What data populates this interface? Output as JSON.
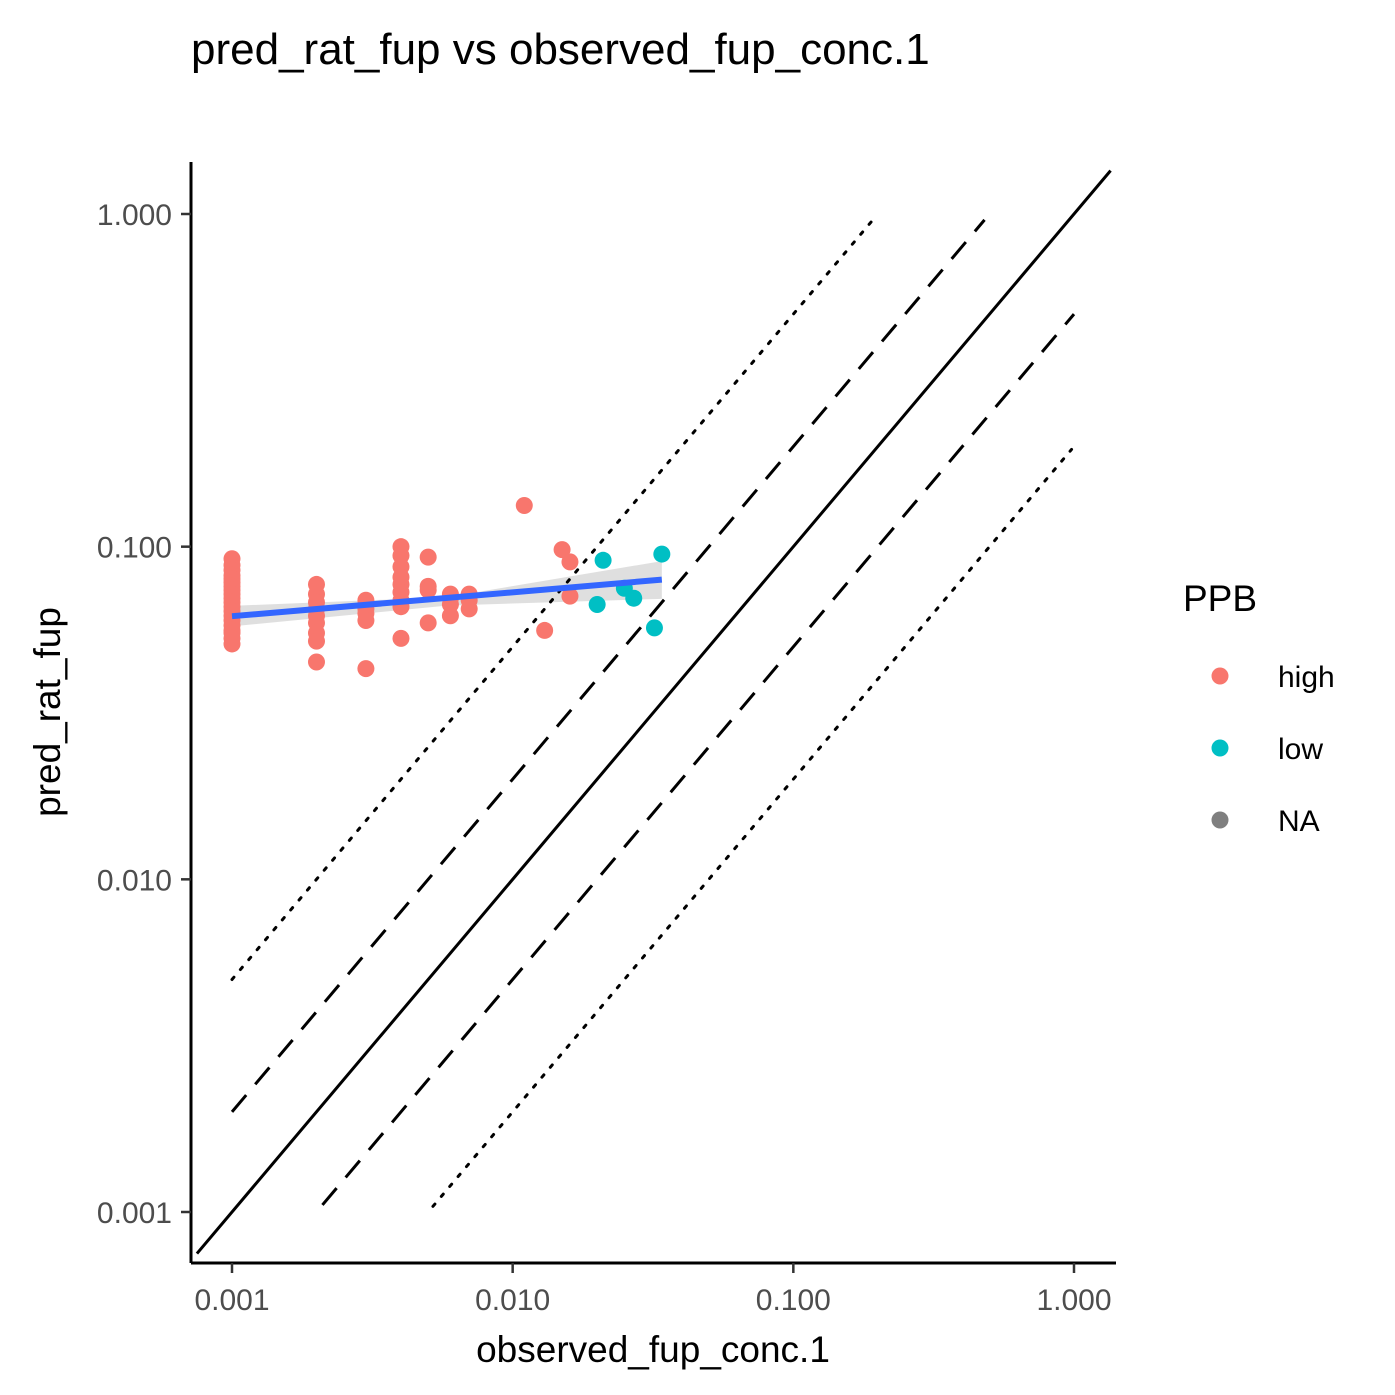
{
  "chart_data": {
    "type": "scatter",
    "title": "pred_rat_fup vs observed_fup_conc.1",
    "xlabel": "observed_fup_conc.1",
    "ylabel": "pred_rat_fup",
    "x_scale": "log10",
    "y_scale": "log10",
    "xlim": [
      0.00075,
      1.35
    ],
    "ylim": [
      0.00075,
      1.35
    ],
    "x_ticks": [
      0.001,
      0.01,
      0.1,
      1
    ],
    "y_ticks": [
      0.001,
      0.01,
      0.1,
      1
    ],
    "x_tick_labels": [
      "0.001",
      "0.010",
      "0.100",
      "1.000"
    ],
    "y_tick_labels": [
      "0.001",
      "0.010",
      "0.100",
      "1.000"
    ],
    "grid": false,
    "legend": {
      "title": "PPB",
      "position": "right",
      "entries": [
        {
          "label": "high",
          "color": "#F8766D"
        },
        {
          "label": "low",
          "color": "#00BFC4"
        },
        {
          "label": "NA",
          "color": "#7F7F7F"
        }
      ]
    },
    "series": [
      {
        "name": "high",
        "color": "#F8766D",
        "points": [
          [
            0.001,
            0.092
          ],
          [
            0.001,
            0.088
          ],
          [
            0.001,
            0.085
          ],
          [
            0.001,
            0.082
          ],
          [
            0.001,
            0.08
          ],
          [
            0.001,
            0.078
          ],
          [
            0.001,
            0.076
          ],
          [
            0.001,
            0.074
          ],
          [
            0.001,
            0.072
          ],
          [
            0.001,
            0.07
          ],
          [
            0.001,
            0.068
          ],
          [
            0.001,
            0.066
          ],
          [
            0.001,
            0.064
          ],
          [
            0.001,
            0.062
          ],
          [
            0.001,
            0.06
          ],
          [
            0.001,
            0.058
          ],
          [
            0.001,
            0.056
          ],
          [
            0.001,
            0.055
          ],
          [
            0.001,
            0.053
          ],
          [
            0.001,
            0.051
          ],
          [
            0.002,
            0.077
          ],
          [
            0.002,
            0.072
          ],
          [
            0.002,
            0.068
          ],
          [
            0.002,
            0.065
          ],
          [
            0.002,
            0.062
          ],
          [
            0.002,
            0.059
          ],
          [
            0.002,
            0.055
          ],
          [
            0.002,
            0.052
          ],
          [
            0.002,
            0.045
          ],
          [
            0.003,
            0.069
          ],
          [
            0.003,
            0.067
          ],
          [
            0.003,
            0.065
          ],
          [
            0.003,
            0.063
          ],
          [
            0.003,
            0.06
          ],
          [
            0.003,
            0.043
          ],
          [
            0.004,
            0.1
          ],
          [
            0.004,
            0.094
          ],
          [
            0.004,
            0.087
          ],
          [
            0.004,
            0.081
          ],
          [
            0.004,
            0.077
          ],
          [
            0.004,
            0.073
          ],
          [
            0.004,
            0.069
          ],
          [
            0.004,
            0.066
          ],
          [
            0.004,
            0.053
          ],
          [
            0.005,
            0.093
          ],
          [
            0.005,
            0.076
          ],
          [
            0.005,
            0.074
          ],
          [
            0.005,
            0.059
          ],
          [
            0.006,
            0.072
          ],
          [
            0.006,
            0.07
          ],
          [
            0.006,
            0.067
          ],
          [
            0.006,
            0.062
          ],
          [
            0.007,
            0.072
          ],
          [
            0.007,
            0.069
          ],
          [
            0.007,
            0.065
          ],
          [
            0.011,
            0.133
          ],
          [
            0.013,
            0.056
          ],
          [
            0.015,
            0.098
          ],
          [
            0.016,
            0.09
          ],
          [
            0.016,
            0.071
          ]
        ]
      },
      {
        "name": "low",
        "color": "#00BFC4",
        "points": [
          [
            0.021,
            0.091
          ],
          [
            0.02,
            0.067
          ],
          [
            0.025,
            0.075
          ],
          [
            0.027,
            0.07
          ],
          [
            0.032,
            0.057
          ],
          [
            0.034,
            0.095
          ]
        ]
      }
    ],
    "fit_line": {
      "method": "lm",
      "color": "#3366FF",
      "x_range": [
        0.001,
        0.034
      ],
      "y_start": 0.0618,
      "y_end": 0.0796,
      "ci_width_start": [
        0.0576,
        0.0664
      ],
      "ci_width_mid": [
        0.0665,
        0.0705
      ],
      "ci_width_end": [
        0.0697,
        0.0905
      ],
      "ci_color": "#D9D9D9"
    },
    "reference_lines": [
      {
        "style": "solid",
        "factor": 1,
        "x_range": [
          0.00075,
          1.35
        ]
      },
      {
        "style": "dashed",
        "factor": 2,
        "x_range": [
          0.001,
          0.48
        ]
      },
      {
        "style": "dashed",
        "factor": 0.5,
        "x_range": [
          0.0021,
          1.0
        ]
      },
      {
        "style": "dotted",
        "factor": 5,
        "x_range": [
          0.001,
          0.19
        ]
      },
      {
        "style": "dotted",
        "factor": 0.2,
        "x_range": [
          0.0052,
          0.98
        ]
      }
    ]
  }
}
